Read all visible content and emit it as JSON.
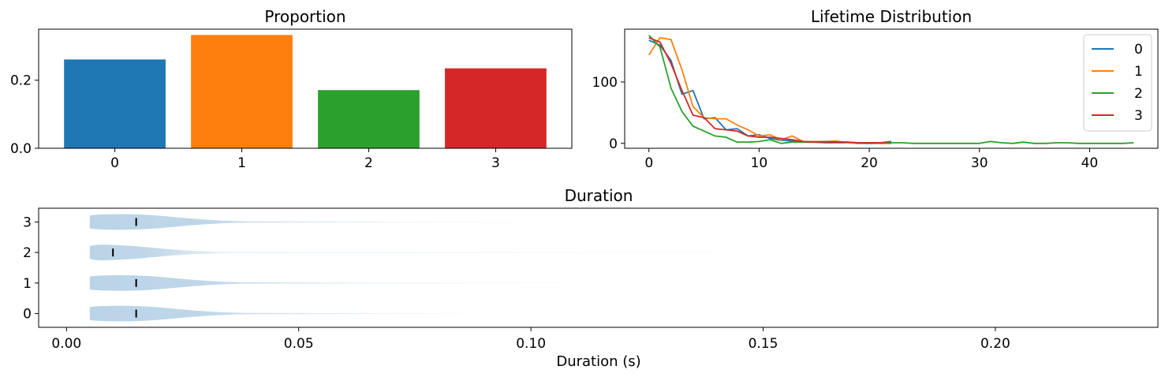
{
  "chart_data": [
    {
      "type": "bar",
      "title": "Proportion",
      "categories": [
        "0",
        "1",
        "2",
        "3"
      ],
      "values": [
        0.261,
        0.333,
        0.171,
        0.235
      ],
      "colors": [
        "#1f77b4",
        "#ff7f0e",
        "#2ca02c",
        "#d62728"
      ],
      "ylim": [
        0,
        0.35
      ],
      "yticks": [
        0.0,
        0.2
      ],
      "ytick_labels": [
        "0.0",
        "0.2"
      ],
      "xlabel": "",
      "ylabel": "",
      "grid": false
    },
    {
      "type": "line",
      "title": "Lifetime Distribution",
      "xlim": [
        -2.2,
        46.2
      ],
      "ylim": [
        -8,
        186
      ],
      "xticks": [
        0,
        10,
        20,
        30,
        40
      ],
      "xtick_labels": [
        "0",
        "10",
        "20",
        "30",
        "40"
      ],
      "yticks": [
        0,
        100
      ],
      "ytick_labels": [
        "0",
        "100"
      ],
      "legend": "top-right",
      "grid": false,
      "series": [
        {
          "name": "0",
          "color": "#1f77b4",
          "x": [
            0,
            1,
            2,
            3,
            4,
            5,
            6,
            7,
            8,
            9,
            10,
            11,
            12,
            13,
            14,
            15,
            16,
            17,
            18,
            19,
            20,
            21,
            22
          ],
          "y": [
            168,
            160,
            135,
            80,
            86,
            40,
            42,
            22,
            24,
            12,
            14,
            8,
            5,
            4,
            2,
            2,
            1,
            1,
            1,
            0,
            0,
            0,
            0
          ]
        },
        {
          "name": "1",
          "color": "#ff7f0e",
          "x": [
            0,
            1,
            2,
            3,
            4,
            5,
            6,
            7,
            8,
            9,
            10,
            11,
            12,
            13,
            14,
            15,
            16,
            17,
            18,
            19,
            20,
            21,
            22
          ],
          "y": [
            144,
            172,
            169,
            120,
            60,
            42,
            40,
            40,
            30,
            22,
            12,
            14,
            6,
            12,
            3,
            3,
            3,
            4,
            1,
            0,
            1,
            0,
            0
          ]
        },
        {
          "name": "2",
          "color": "#2ca02c",
          "x": [
            0,
            1,
            2,
            3,
            4,
            5,
            6,
            7,
            8,
            9,
            10,
            11,
            12,
            13,
            14,
            15,
            16,
            17,
            18,
            19,
            20,
            21,
            22,
            23,
            24,
            25,
            26,
            27,
            28,
            29,
            30,
            31,
            32,
            33,
            34,
            35,
            36,
            37,
            38,
            39,
            40,
            41,
            42,
            43,
            44
          ],
          "y": [
            176,
            157,
            90,
            52,
            28,
            20,
            12,
            10,
            2,
            2,
            3,
            6,
            0,
            2,
            2,
            2,
            3,
            2,
            2,
            1,
            1,
            1,
            1,
            1,
            0,
            0,
            0,
            0,
            0,
            0,
            0,
            3,
            1,
            0,
            2,
            0,
            0,
            1,
            1,
            0,
            0,
            0,
            0,
            0,
            1
          ]
        },
        {
          "name": "3",
          "color": "#d62728",
          "x": [
            0,
            1,
            2,
            3,
            4,
            5,
            6,
            7,
            8,
            9,
            10,
            11,
            12,
            13,
            14,
            15,
            16,
            17,
            18,
            19,
            20,
            21,
            22
          ],
          "y": [
            172,
            165,
            130,
            86,
            46,
            42,
            24,
            22,
            20,
            12,
            10,
            10,
            8,
            6,
            3,
            2,
            2,
            2,
            2,
            1,
            1,
            1,
            3
          ]
        }
      ]
    },
    {
      "type": "violin",
      "title": "Duration",
      "xlabel": "Duration (s)",
      "ylabel": "",
      "orientation": "horizontal",
      "categories": [
        "0",
        "1",
        "2",
        "3"
      ],
      "xlim": [
        -0.006,
        0.235
      ],
      "ylim": [
        -0.45,
        3.45
      ],
      "xticks": [
        0.0,
        0.05,
        0.1,
        0.15,
        0.2
      ],
      "xtick_labels": [
        "0.00",
        "0.05",
        "0.10",
        "0.15",
        "0.20"
      ],
      "yticks": [
        0,
        1,
        2,
        3
      ],
      "ytick_labels": [
        "0",
        "1",
        "2",
        "3"
      ],
      "fill_color": "#a9c9e1",
      "series": [
        {
          "name": "0",
          "min": 0.005,
          "median": 0.015,
          "max": 0.094
        },
        {
          "name": "1",
          "min": 0.005,
          "median": 0.015,
          "max": 0.128
        },
        {
          "name": "2",
          "min": 0.005,
          "median": 0.01,
          "max": 0.184
        },
        {
          "name": "3",
          "min": 0.005,
          "median": 0.015,
          "max": 0.108
        }
      ],
      "grid": false
    }
  ]
}
